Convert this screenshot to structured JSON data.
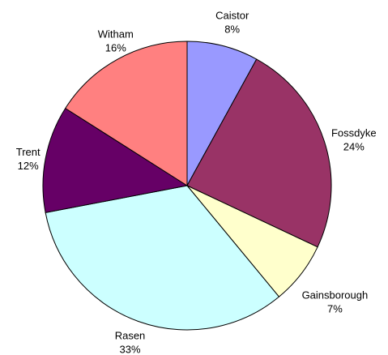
{
  "chart_data": {
    "type": "pie",
    "title": "",
    "legend": "none",
    "slices": [
      {
        "label": "Caistor",
        "value": 8,
        "pct_label": "8%",
        "color": "#9999FF"
      },
      {
        "label": "Fossdyke",
        "value": 24,
        "pct_label": "24%",
        "color": "#993366"
      },
      {
        "label": "Gainsborough",
        "value": 7,
        "pct_label": "7%",
        "color": "#FFFFCC"
      },
      {
        "label": "Rasen",
        "value": 33,
        "pct_label": "33%",
        "color": "#CCFFFF"
      },
      {
        "label": "Trent",
        "value": 12,
        "pct_label": "12%",
        "color": "#660066"
      },
      {
        "label": "Witham",
        "value": 16,
        "pct_label": "16%",
        "color": "#FF8080"
      }
    ]
  }
}
